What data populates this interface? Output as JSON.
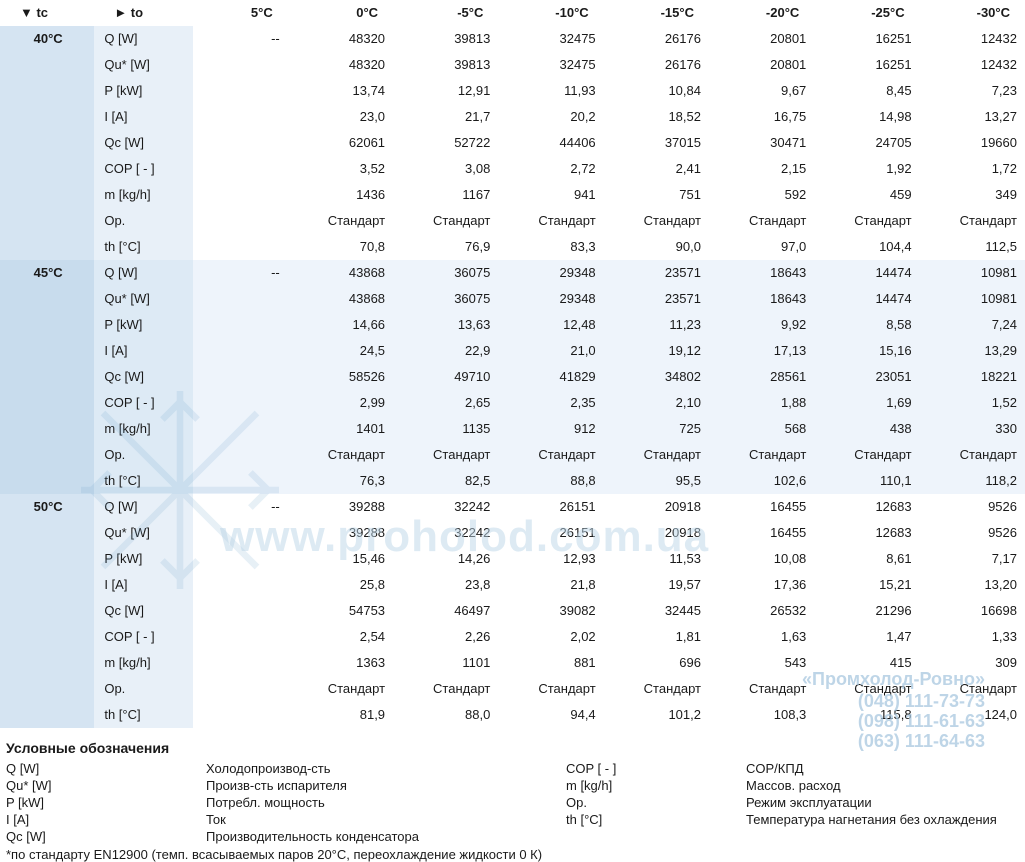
{
  "header": {
    "tc_label": "▼ tc",
    "to_label": "► to",
    "temps": [
      "5°C",
      "0°C",
      "-5°C",
      "-10°C",
      "-15°C",
      "-20°C",
      "-25°C",
      "-30°C"
    ]
  },
  "params": [
    "Q [W]",
    "Qu* [W]",
    "P [kW]",
    "I [A]",
    "Qc [W]",
    "COP [ - ]",
    "m [kg/h]",
    "Op.",
    "th [°C]"
  ],
  "groups": [
    {
      "tc": "40°C",
      "alt": false,
      "rows": [
        [
          "--",
          "48320",
          "39813",
          "32475",
          "26176",
          "20801",
          "16251",
          "12432"
        ],
        [
          "",
          "48320",
          "39813",
          "32475",
          "26176",
          "20801",
          "16251",
          "12432"
        ],
        [
          "",
          "13,74",
          "12,91",
          "11,93",
          "10,84",
          "9,67",
          "8,45",
          "7,23"
        ],
        [
          "",
          "23,0",
          "21,7",
          "20,2",
          "18,52",
          "16,75",
          "14,98",
          "13,27"
        ],
        [
          "",
          "62061",
          "52722",
          "44406",
          "37015",
          "30471",
          "24705",
          "19660"
        ],
        [
          "",
          "3,52",
          "3,08",
          "2,72",
          "2,41",
          "2,15",
          "1,92",
          "1,72"
        ],
        [
          "",
          "1436",
          "1167",
          "941",
          "751",
          "592",
          "459",
          "349"
        ],
        [
          "",
          "Стандарт",
          "Стандарт",
          "Стандарт",
          "Стандарт",
          "Стандарт",
          "Стандарт",
          "Стандарт"
        ],
        [
          "",
          "70,8",
          "76,9",
          "83,3",
          "90,0",
          "97,0",
          "104,4",
          "112,5"
        ]
      ]
    },
    {
      "tc": "45°C",
      "alt": true,
      "rows": [
        [
          "--",
          "43868",
          "36075",
          "29348",
          "23571",
          "18643",
          "14474",
          "10981"
        ],
        [
          "",
          "43868",
          "36075",
          "29348",
          "23571",
          "18643",
          "14474",
          "10981"
        ],
        [
          "",
          "14,66",
          "13,63",
          "12,48",
          "11,23",
          "9,92",
          "8,58",
          "7,24"
        ],
        [
          "",
          "24,5",
          "22,9",
          "21,0",
          "19,12",
          "17,13",
          "15,16",
          "13,29"
        ],
        [
          "",
          "58526",
          "49710",
          "41829",
          "34802",
          "28561",
          "23051",
          "18221"
        ],
        [
          "",
          "2,99",
          "2,65",
          "2,35",
          "2,10",
          "1,88",
          "1,69",
          "1,52"
        ],
        [
          "",
          "1401",
          "1135",
          "912",
          "725",
          "568",
          "438",
          "330"
        ],
        [
          "",
          "Стандарт",
          "Стандарт",
          "Стандарт",
          "Стандарт",
          "Стандарт",
          "Стандарт",
          "Стандарт"
        ],
        [
          "",
          "76,3",
          "82,5",
          "88,8",
          "95,5",
          "102,6",
          "110,1",
          "118,2"
        ]
      ]
    },
    {
      "tc": "50°C",
      "alt": false,
      "rows": [
        [
          "--",
          "39288",
          "32242",
          "26151",
          "20918",
          "16455",
          "12683",
          "9526"
        ],
        [
          "",
          "39288",
          "32242",
          "26151",
          "20918",
          "16455",
          "12683",
          "9526"
        ],
        [
          "",
          "15,46",
          "14,26",
          "12,93",
          "11,53",
          "10,08",
          "8,61",
          "7,17"
        ],
        [
          "",
          "25,8",
          "23,8",
          "21,8",
          "19,57",
          "17,36",
          "15,21",
          "13,20"
        ],
        [
          "",
          "54753",
          "46497",
          "39082",
          "32445",
          "26532",
          "21296",
          "16698"
        ],
        [
          "",
          "2,54",
          "2,26",
          "2,02",
          "1,81",
          "1,63",
          "1,47",
          "1,33"
        ],
        [
          "",
          "1363",
          "1101",
          "881",
          "696",
          "543",
          "415",
          "309"
        ],
        [
          "",
          "Стандарт",
          "Стандарт",
          "Стандарт",
          "Стандарт",
          "Стандарт",
          "Стандарт",
          "Стандарт"
        ],
        [
          "",
          "81,9",
          "88,0",
          "94,4",
          "101,2",
          "108,3",
          "115,8",
          "124,0"
        ]
      ]
    }
  ],
  "legend": {
    "title": "Условные обозначения",
    "items": [
      [
        "Q [W]",
        "Холодопроизвод-сть",
        "COP [ - ]",
        "COP/КПД"
      ],
      [
        "Qu* [W]",
        "Произв-сть испарителя",
        "m [kg/h]",
        "Массов. расход"
      ],
      [
        "P [kW]",
        "Потребл. мощность",
        "Op.",
        "Режим эксплуатации"
      ],
      [
        "I [A]",
        "Ток",
        "th [°C]",
        "Температура нагнетания без охлаждения"
      ],
      [
        "Qc [W]",
        "Производительность конденсатора",
        "",
        ""
      ]
    ],
    "footnote": "*по стандарту EN12900 (темп. всасываемых паров 20°С, переохлаждение жидкости 0 К)"
  },
  "watermarks": {
    "url": "www.proholod.com.ua",
    "company": "«Промхолод-Ровно»",
    "phones": [
      "(048) 111-73-73",
      "(098) 111-61-63",
      "(063) 111-64-63"
    ]
  },
  "colors": {
    "header_blue_dark": "#d5e4f2",
    "header_blue_light": "#e8f0f8",
    "row_alt_bg": "#eef4fb",
    "watermark_blue": "#a9c8df"
  }
}
